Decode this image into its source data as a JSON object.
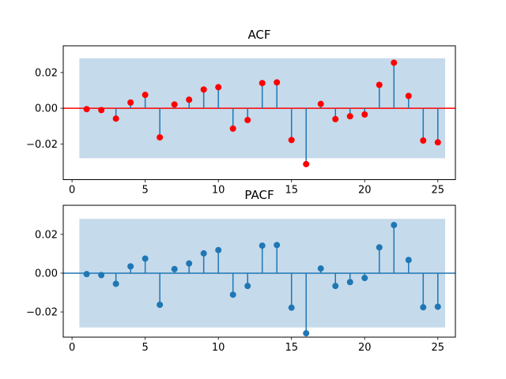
{
  "chart_data": [
    {
      "type": "stem",
      "title": "ACF",
      "xlabel": "",
      "ylabel": "",
      "xlim": [
        -0.6,
        26.2
      ],
      "ylim": [
        -0.04,
        0.035
      ],
      "xticks": [
        0,
        5,
        10,
        15,
        20,
        25
      ],
      "yticks": [
        -0.02,
        0.0,
        0.02
      ],
      "ytick_labels": [
        "−0.02",
        "0.00",
        "0.02"
      ],
      "confidence_band": {
        "x": [
          0.5,
          25.5
        ],
        "lower": -0.028,
        "upper": 0.028
      },
      "baseline": 0,
      "x": [
        1,
        2,
        3,
        4,
        5,
        6,
        7,
        8,
        9,
        10,
        11,
        12,
        13,
        14,
        15,
        16,
        17,
        18,
        19,
        20,
        21,
        22,
        23,
        24,
        25
      ],
      "values": [
        -0.0005,
        -0.001,
        -0.0058,
        0.0032,
        0.0075,
        -0.0163,
        0.0021,
        0.0048,
        0.0105,
        0.0118,
        -0.0114,
        -0.0066,
        0.0141,
        0.0145,
        -0.0178,
        -0.0313,
        0.0024,
        -0.0061,
        -0.0045,
        -0.0035,
        0.0131,
        0.0255,
        0.0069,
        -0.0181,
        -0.0191
      ],
      "colors": {
        "stem": "#1f77b4",
        "marker": "#ff0000",
        "baseline": "#ff0000",
        "band": "#c5daeb"
      },
      "grid": false,
      "legend": ""
    },
    {
      "type": "stem",
      "title": "PACF",
      "xlabel": "",
      "ylabel": "",
      "xlim": [
        -0.6,
        26.2
      ],
      "ylim": [
        -0.033,
        0.035
      ],
      "xticks": [
        0,
        5,
        10,
        15,
        20,
        25
      ],
      "yticks": [
        -0.02,
        0.0,
        0.02
      ],
      "ytick_labels": [
        "−0.02",
        "0.00",
        "0.02"
      ],
      "confidence_band": {
        "x": [
          0.5,
          25.5
        ],
        "lower": -0.028,
        "upper": 0.028
      },
      "baseline": 0,
      "x": [
        1,
        2,
        3,
        4,
        5,
        6,
        7,
        8,
        9,
        10,
        11,
        12,
        13,
        14,
        15,
        16,
        17,
        18,
        19,
        20,
        21,
        22,
        23,
        24,
        25
      ],
      "values": [
        -0.0005,
        -0.001,
        -0.0055,
        0.0035,
        0.0075,
        -0.0163,
        0.0021,
        0.005,
        0.0102,
        0.0119,
        -0.0111,
        -0.0066,
        0.0142,
        0.0145,
        -0.0178,
        -0.031,
        0.0024,
        -0.0066,
        -0.0046,
        -0.0025,
        0.0133,
        0.0248,
        0.0068,
        -0.0176,
        -0.0173
      ],
      "colors": {
        "stem": "#1f77b4",
        "marker": "#1f77b4",
        "baseline": "#1f77b4",
        "band": "#c5daeb"
      },
      "grid": false,
      "legend": ""
    }
  ]
}
